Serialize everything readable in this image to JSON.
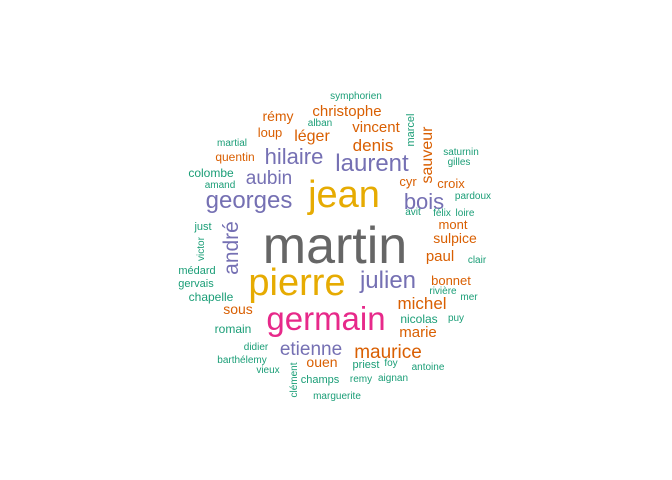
{
  "chart_data": {
    "type": "wordcloud",
    "title": "",
    "colors": {
      "grey": "#666666",
      "gold": "#e6ab02",
      "magenta": "#e7298a",
      "purple": "#7570b3",
      "orange": "#d95f02",
      "teal": "#1b9e77"
    },
    "words": [
      {
        "text": "martin",
        "color": "grey",
        "size": 52
      },
      {
        "text": "pierre",
        "color": "gold",
        "size": 38
      },
      {
        "text": "jean",
        "color": "gold",
        "size": 38
      },
      {
        "text": "germain",
        "color": "magenta",
        "size": 33
      },
      {
        "text": "laurent",
        "color": "purple",
        "size": 24
      },
      {
        "text": "georges",
        "color": "purple",
        "size": 24
      },
      {
        "text": "julien",
        "color": "purple",
        "size": 24
      },
      {
        "text": "hilaire",
        "color": "purple",
        "size": 22
      },
      {
        "text": "bois",
        "color": "purple",
        "size": 22
      },
      {
        "text": "andré",
        "color": "purple",
        "size": 21
      },
      {
        "text": "aubin",
        "color": "purple",
        "size": 19
      },
      {
        "text": "etienne",
        "color": "purple",
        "size": 19
      },
      {
        "text": "maurice",
        "color": "orange",
        "size": 19
      },
      {
        "text": "michel",
        "color": "orange",
        "size": 17
      },
      {
        "text": "denis",
        "color": "orange",
        "size": 17
      },
      {
        "text": "léger",
        "color": "orange",
        "size": 16
      },
      {
        "text": "sauveur",
        "color": "orange",
        "size": 16
      },
      {
        "text": "christophe",
        "color": "orange",
        "size": 15
      },
      {
        "text": "vincent",
        "color": "orange",
        "size": 15
      },
      {
        "text": "paul",
        "color": "orange",
        "size": 15
      },
      {
        "text": "marie",
        "color": "orange",
        "size": 15
      },
      {
        "text": "rémy",
        "color": "orange",
        "size": 14
      },
      {
        "text": "sous",
        "color": "orange",
        "size": 14
      },
      {
        "text": "sulpice",
        "color": "orange",
        "size": 14
      },
      {
        "text": "ouen",
        "color": "orange",
        "size": 14
      },
      {
        "text": "loup",
        "color": "orange",
        "size": 13
      },
      {
        "text": "cyr",
        "color": "orange",
        "size": 13
      },
      {
        "text": "croix",
        "color": "orange",
        "size": 13
      },
      {
        "text": "mont",
        "color": "orange",
        "size": 13
      },
      {
        "text": "bonnet",
        "color": "orange",
        "size": 13
      },
      {
        "text": "quentin",
        "color": "orange",
        "size": 12
      },
      {
        "text": "colombe",
        "color": "teal",
        "size": 12
      },
      {
        "text": "chapelle",
        "color": "teal",
        "size": 12
      },
      {
        "text": "romain",
        "color": "teal",
        "size": 12
      },
      {
        "text": "nicolas",
        "color": "teal",
        "size": 12
      },
      {
        "text": "champs",
        "color": "teal",
        "size": 11
      },
      {
        "text": "priest",
        "color": "teal",
        "size": 11
      },
      {
        "text": "just",
        "color": "teal",
        "size": 11
      },
      {
        "text": "médard",
        "color": "teal",
        "size": 11
      },
      {
        "text": "gervais",
        "color": "teal",
        "size": 11
      },
      {
        "text": "marcel",
        "color": "teal",
        "size": 11
      },
      {
        "text": "martial",
        "color": "teal",
        "size": 10
      },
      {
        "text": "symphorien",
        "color": "teal",
        "size": 10
      },
      {
        "text": "amand",
        "color": "teal",
        "size": 10
      },
      {
        "text": "victor",
        "color": "teal",
        "size": 10
      },
      {
        "text": "didier",
        "color": "teal",
        "size": 10
      },
      {
        "text": "barthélemy",
        "color": "teal",
        "size": 10
      },
      {
        "text": "vieux",
        "color": "teal",
        "size": 10
      },
      {
        "text": "clément",
        "color": "teal",
        "size": 10
      },
      {
        "text": "remy",
        "color": "teal",
        "size": 10
      },
      {
        "text": "aignan",
        "color": "teal",
        "size": 10
      },
      {
        "text": "foy",
        "color": "teal",
        "size": 10
      },
      {
        "text": "antoine",
        "color": "teal",
        "size": 10
      },
      {
        "text": "marguerite",
        "color": "teal",
        "size": 10
      },
      {
        "text": "rivière",
        "color": "teal",
        "size": 10
      },
      {
        "text": "mer",
        "color": "teal",
        "size": 10
      },
      {
        "text": "puy",
        "color": "teal",
        "size": 10
      },
      {
        "text": "clair",
        "color": "teal",
        "size": 10
      },
      {
        "text": "félix",
        "color": "teal",
        "size": 10
      },
      {
        "text": "loire",
        "color": "teal",
        "size": 10
      },
      {
        "text": "avit",
        "color": "teal",
        "size": 10
      },
      {
        "text": "pardoux",
        "color": "teal",
        "size": 10
      },
      {
        "text": "gilles",
        "color": "teal",
        "size": 10
      },
      {
        "text": "saturnin",
        "color": "teal",
        "size": 10
      },
      {
        "text": "alban",
        "color": "teal",
        "size": 10
      }
    ]
  }
}
